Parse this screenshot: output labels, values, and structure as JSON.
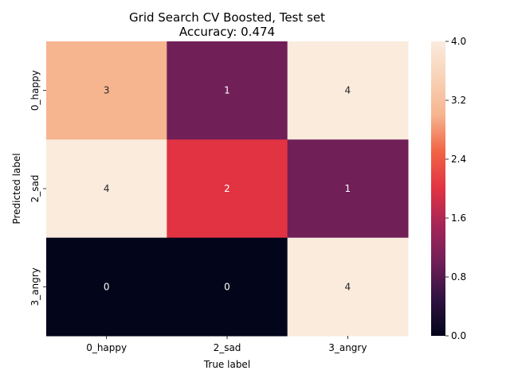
{
  "chart_data": {
    "type": "heatmap",
    "title_line1": "Grid Search CV Boosted, Test set",
    "title_line2": "Accuracy: 0.474",
    "xlabel": "True label",
    "ylabel": "Predicted label",
    "x_categories": [
      "0_happy",
      "2_sad",
      "3_angry"
    ],
    "y_categories": [
      "0_happy",
      "2_sad",
      "3_angry"
    ],
    "values": [
      [
        3,
        1,
        4
      ],
      [
        4,
        2,
        1
      ],
      [
        0,
        0,
        4
      ]
    ],
    "colorbar": {
      "min": 0,
      "max": 4,
      "ticks": [
        "0.0",
        "0.8",
        "1.6",
        "2.4",
        "3.2",
        "4.0"
      ]
    },
    "colormap": "rocket",
    "colors": {
      "0": "#03051a",
      "1": "#701f57",
      "2": "#e13342",
      "3": "#f6b48f",
      "4": "#faebdd"
    }
  }
}
